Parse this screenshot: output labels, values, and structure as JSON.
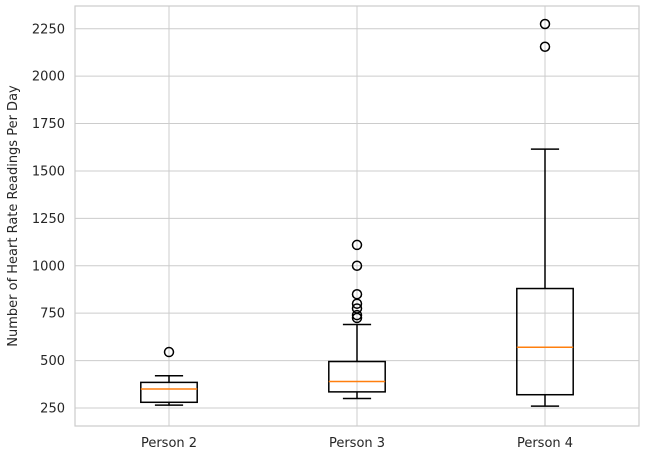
{
  "chart_data": {
    "type": "box",
    "ylabel": "Number of Heart Rate Readings Per Day",
    "xlabel": "",
    "ylim": [
      155,
      2370
    ],
    "yticks": [
      250,
      500,
      750,
      1000,
      1250,
      1500,
      1750,
      2000,
      2250
    ],
    "grid": true,
    "colors": {
      "box": "#000000",
      "median": "#ff7f0e",
      "grid": "#cccccc"
    },
    "categories": [
      "Person 2",
      "Person 3",
      "Person 4"
    ],
    "boxes": [
      {
        "name": "Person 2",
        "whisker_low": 265,
        "q1": 280,
        "median": 350,
        "q3": 385,
        "whisker_high": 420,
        "outliers": [
          545
        ]
      },
      {
        "name": "Person 3",
        "whisker_low": 300,
        "q1": 335,
        "median": 390,
        "q3": 495,
        "whisker_high": 690,
        "outliers": [
          725,
          740,
          775,
          800,
          850,
          1000,
          1110
        ]
      },
      {
        "name": "Person 4",
        "whisker_low": 260,
        "q1": 320,
        "median": 570,
        "q3": 880,
        "whisker_high": 1615,
        "outliers": [
          2155,
          2275
        ]
      }
    ]
  }
}
